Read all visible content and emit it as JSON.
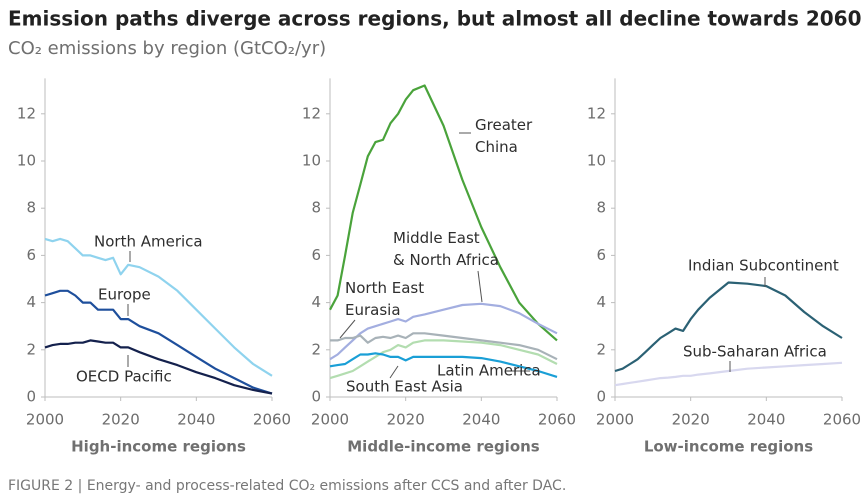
{
  "title": "Emission paths diverge across regions, but almost all decline towards 2060",
  "subtitle": "CO₂ emissions by region (GtCO₂/yr)",
  "caption": "FIGURE 2 | Energy- and process-related CO₂ emissions after CCS and after DAC.",
  "chart_data": [
    {
      "type": "line",
      "xlabel": "High-income regions",
      "x": [
        2000,
        2002,
        2004,
        2006,
        2008,
        2010,
        2012,
        2014,
        2016,
        2018,
        2020,
        2022,
        2025,
        2030,
        2035,
        2040,
        2045,
        2050,
        2055,
        2060
      ],
      "xlim": [
        2000,
        2060
      ],
      "xticks": [
        2000,
        2020,
        2040,
        2060
      ],
      "ylim": [
        0,
        13.5
      ],
      "yticks": [
        0,
        2,
        4,
        6,
        8,
        10,
        12
      ],
      "series": [
        {
          "name": "North America",
          "color": "#8fd3ee",
          "values": [
            6.7,
            6.6,
            6.7,
            6.6,
            6.3,
            6.0,
            6.0,
            5.9,
            5.8,
            5.9,
            5.2,
            5.6,
            5.5,
            5.1,
            4.5,
            3.7,
            2.9,
            2.1,
            1.4,
            0.9
          ]
        },
        {
          "name": "Europe",
          "color": "#1e4f9c",
          "values": [
            4.3,
            4.4,
            4.5,
            4.5,
            4.3,
            4.0,
            4.0,
            3.7,
            3.7,
            3.7,
            3.3,
            3.3,
            3.0,
            2.7,
            2.2,
            1.7,
            1.2,
            0.8,
            0.4,
            0.15
          ]
        },
        {
          "name": "OECD Pacific",
          "color": "#14214d",
          "values": [
            2.1,
            2.2,
            2.25,
            2.25,
            2.3,
            2.3,
            2.4,
            2.35,
            2.3,
            2.3,
            2.1,
            2.1,
            1.9,
            1.6,
            1.35,
            1.05,
            0.8,
            0.5,
            0.3,
            0.15
          ]
        }
      ]
    },
    {
      "type": "line",
      "xlabel": "Middle-income regions",
      "x": [
        2000,
        2002,
        2004,
        2006,
        2008,
        2010,
        2012,
        2014,
        2016,
        2018,
        2020,
        2022,
        2025,
        2030,
        2035,
        2040,
        2045,
        2050,
        2055,
        2060
      ],
      "xlim": [
        2000,
        2060
      ],
      "xticks": [
        2000,
        2020,
        2040,
        2060
      ],
      "ylim": [
        0,
        13.5
      ],
      "yticks": [
        0,
        2,
        4,
        6,
        8,
        10,
        12
      ],
      "series": [
        {
          "name": "Greater China",
          "color": "#4aa33b",
          "values": [
            3.7,
            4.3,
            6.0,
            7.8,
            9.0,
            10.2,
            10.8,
            10.9,
            11.6,
            12.0,
            12.6,
            13.0,
            13.2,
            11.5,
            9.2,
            7.2,
            5.5,
            4.0,
            3.1,
            2.4
          ]
        },
        {
          "name": "Middle East & North Africa",
          "color": "#a3aee0",
          "values": [
            1.6,
            1.8,
            2.1,
            2.4,
            2.7,
            2.9,
            3.0,
            3.1,
            3.2,
            3.3,
            3.2,
            3.4,
            3.5,
            3.7,
            3.9,
            3.95,
            3.85,
            3.55,
            3.1,
            2.7
          ]
        },
        {
          "name": "North East Eurasia",
          "color": "#a8b2b8",
          "values": [
            2.4,
            2.4,
            2.5,
            2.5,
            2.6,
            2.3,
            2.5,
            2.55,
            2.5,
            2.6,
            2.5,
            2.7,
            2.7,
            2.6,
            2.5,
            2.4,
            2.3,
            2.2,
            2.0,
            1.6
          ]
        },
        {
          "name": "South East Asia",
          "color": "#b3ddb0",
          "values": [
            0.8,
            0.9,
            1.0,
            1.1,
            1.3,
            1.5,
            1.7,
            1.9,
            2.0,
            2.2,
            2.1,
            2.3,
            2.4,
            2.4,
            2.35,
            2.3,
            2.2,
            2.0,
            1.8,
            1.4
          ]
        },
        {
          "name": "Latin America",
          "color": "#1a9fd6",
          "values": [
            1.3,
            1.35,
            1.4,
            1.6,
            1.8,
            1.8,
            1.85,
            1.8,
            1.7,
            1.7,
            1.55,
            1.7,
            1.7,
            1.7,
            1.7,
            1.65,
            1.5,
            1.3,
            1.1,
            0.85
          ]
        }
      ]
    },
    {
      "type": "line",
      "xlabel": "Low-income regions",
      "x": [
        2000,
        2002,
        2004,
        2006,
        2008,
        2010,
        2012,
        2014,
        2016,
        2018,
        2020,
        2022,
        2025,
        2030,
        2035,
        2040,
        2045,
        2050,
        2055,
        2060
      ],
      "xlim": [
        2000,
        2060
      ],
      "xticks": [
        2000,
        2020,
        2040,
        2060
      ],
      "ylim": [
        0,
        13.5
      ],
      "yticks": [
        0,
        2,
        4,
        6,
        8,
        10,
        12
      ],
      "series": [
        {
          "name": "Indian Subcontinent",
          "color": "#2b6174",
          "values": [
            1.1,
            1.2,
            1.4,
            1.6,
            1.9,
            2.2,
            2.5,
            2.7,
            2.9,
            2.8,
            3.3,
            3.7,
            4.2,
            4.85,
            4.8,
            4.7,
            4.3,
            3.6,
            3.0,
            2.5
          ]
        },
        {
          "name": "Sub-Saharan Africa",
          "color": "#d8d8ef",
          "values": [
            0.5,
            0.55,
            0.6,
            0.65,
            0.7,
            0.75,
            0.8,
            0.82,
            0.85,
            0.9,
            0.9,
            0.95,
            1.0,
            1.1,
            1.2,
            1.25,
            1.3,
            1.35,
            1.4,
            1.45
          ]
        }
      ]
    }
  ]
}
